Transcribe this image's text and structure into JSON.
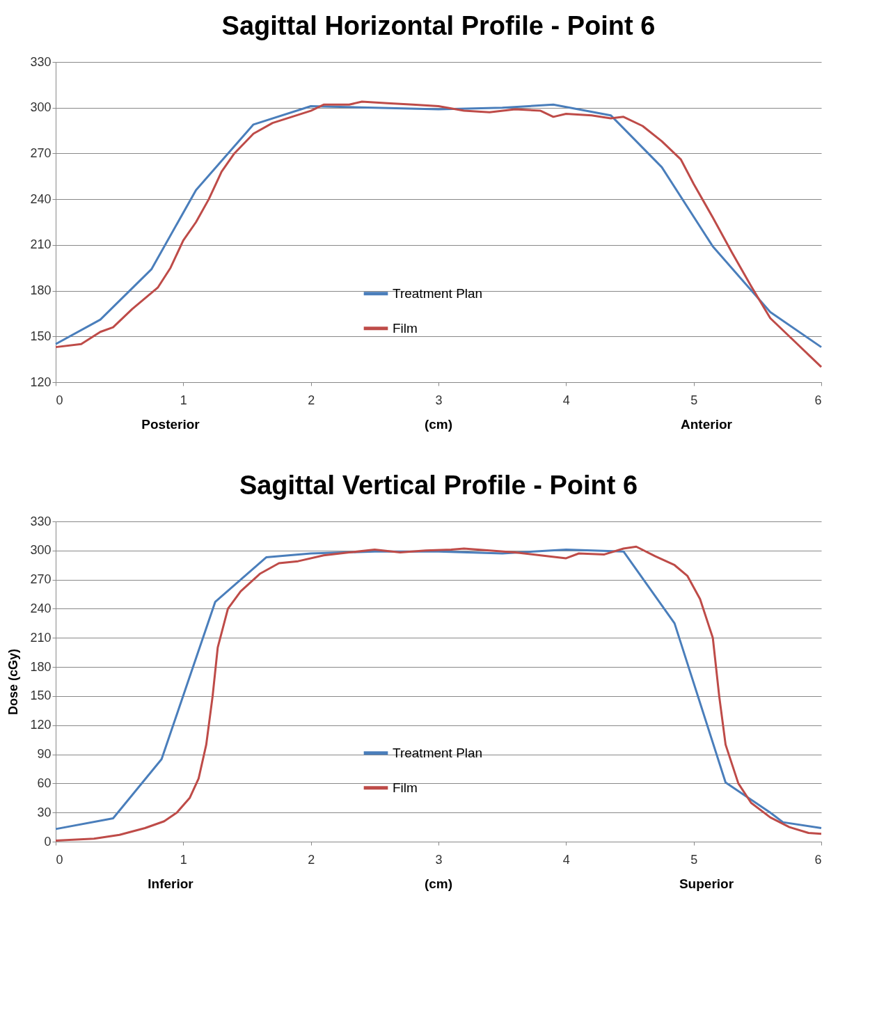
{
  "chart_data": [
    {
      "type": "line",
      "title": "Sagittal Horizontal Profile - Point 6",
      "xlabel": "(cm)",
      "annotations": [
        "Posterior",
        "Anterior"
      ],
      "xlim": [
        0,
        6
      ],
      "xticks": [
        0,
        1,
        2,
        3,
        4,
        5,
        6
      ],
      "ylim": [
        120,
        330
      ],
      "yticks": [
        120,
        150,
        180,
        210,
        240,
        270,
        300,
        330
      ],
      "grid": "y",
      "legend": "bottom",
      "series": [
        {
          "name": "Treatment Plan",
          "color": "#4a7ebb",
          "x": [
            0,
            0.35,
            0.75,
            1.1,
            1.55,
            2.0,
            2.5,
            3.0,
            3.5,
            3.9,
            4.35,
            4.75,
            5.15,
            5.6,
            6.0
          ],
          "values": [
            145,
            161,
            194,
            246,
            289,
            301,
            300,
            299,
            300,
            302,
            295,
            261,
            209,
            166,
            143
          ]
        },
        {
          "name": "Film",
          "color": "#be4b48",
          "x": [
            0,
            0.2,
            0.35,
            0.45,
            0.6,
            0.8,
            0.9,
            1.0,
            1.1,
            1.2,
            1.3,
            1.4,
            1.55,
            1.7,
            1.85,
            2.0,
            2.1,
            2.3,
            2.4,
            2.6,
            2.8,
            3.0,
            3.2,
            3.4,
            3.6,
            3.8,
            3.9,
            4.0,
            4.2,
            4.35,
            4.45,
            4.6,
            4.75,
            4.9,
            5.0,
            5.15,
            5.3,
            5.45,
            5.6,
            5.75,
            5.9,
            6.0
          ],
          "values": [
            143,
            145,
            153,
            156,
            168,
            182,
            195,
            213,
            225,
            240,
            258,
            270,
            283,
            290,
            294,
            298,
            302,
            302,
            304,
            303,
            302,
            301,
            298,
            297,
            299,
            298,
            294,
            296,
            295,
            293,
            294,
            288,
            278,
            266,
            250,
            228,
            205,
            183,
            162,
            150,
            138,
            130
          ]
        }
      ]
    },
    {
      "type": "line",
      "title": "Sagittal Vertical Profile - Point 6",
      "xlabel": "(cm)",
      "ylabel": "Dose  (cGy)",
      "annotations": [
        "Inferior",
        "Superior"
      ],
      "xlim": [
        0,
        6
      ],
      "xticks": [
        0,
        1,
        2,
        3,
        4,
        5,
        6
      ],
      "ylim": [
        0,
        330
      ],
      "yticks": [
        0,
        30,
        60,
        90,
        120,
        150,
        180,
        210,
        240,
        270,
        300,
        330
      ],
      "grid": "y",
      "legend": "bottom",
      "series": [
        {
          "name": "Treatment Plan",
          "color": "#4a7ebb",
          "x": [
            0,
            0.45,
            0.83,
            1.25,
            1.65,
            2.0,
            2.5,
            3.0,
            3.5,
            4.0,
            4.45,
            4.85,
            5.25,
            5.6,
            5.7,
            6.0
          ],
          "values": [
            13,
            24,
            85,
            247,
            293,
            297,
            299,
            299,
            297,
            301,
            299,
            225,
            61,
            30,
            20,
            14
          ]
        },
        {
          "name": "Film",
          "color": "#be4b48",
          "x": [
            0,
            0.3,
            0.5,
            0.7,
            0.85,
            0.95,
            1.05,
            1.12,
            1.18,
            1.23,
            1.27,
            1.35,
            1.45,
            1.6,
            1.75,
            1.9,
            2.1,
            2.3,
            2.5,
            2.7,
            2.9,
            3.1,
            3.2,
            3.4,
            3.6,
            3.8,
            4.0,
            4.1,
            4.3,
            4.45,
            4.55,
            4.7,
            4.85,
            4.95,
            5.05,
            5.15,
            5.2,
            5.25,
            5.35,
            5.45,
            5.6,
            5.75,
            5.9,
            6.0
          ],
          "values": [
            1,
            3,
            7,
            14,
            21,
            30,
            45,
            65,
            100,
            150,
            200,
            240,
            258,
            276,
            287,
            289,
            295,
            298,
            301,
            298,
            300,
            301,
            302,
            300,
            298,
            295,
            292,
            297,
            296,
            302,
            304,
            294,
            285,
            274,
            250,
            210,
            150,
            100,
            60,
            40,
            25,
            15,
            9,
            8
          ]
        }
      ]
    }
  ]
}
